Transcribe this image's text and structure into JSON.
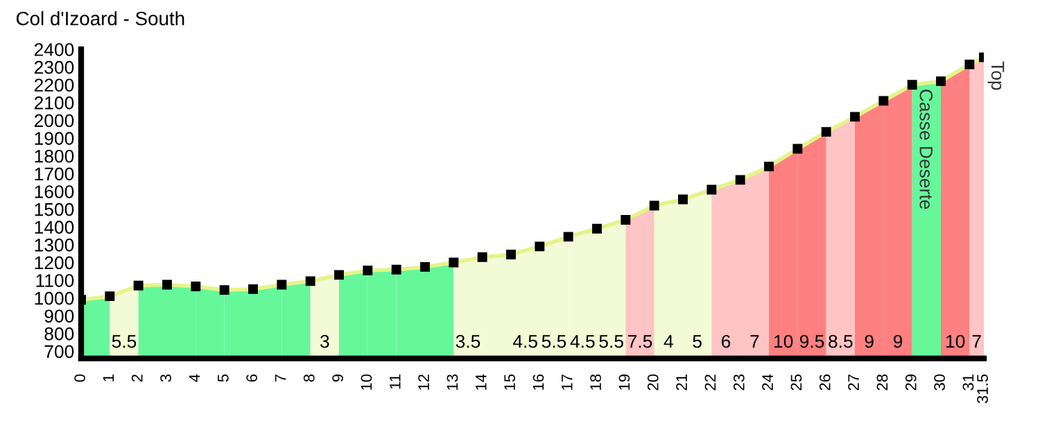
{
  "chart_data": {
    "type": "line",
    "title": "Col d'Izoard - South",
    "x": [
      0,
      1,
      2,
      3,
      4,
      5,
      6,
      7,
      8,
      9,
      10,
      11,
      12,
      13,
      14,
      15,
      16,
      17,
      18,
      19,
      20,
      21,
      22,
      23,
      24,
      25,
      26,
      27,
      28,
      29,
      30,
      31,
      31.5
    ],
    "values": [
      990,
      1010,
      1070,
      1075,
      1065,
      1045,
      1050,
      1075,
      1095,
      1130,
      1155,
      1160,
      1175,
      1200,
      1230,
      1245,
      1290,
      1345,
      1390,
      1440,
      1520,
      1555,
      1610,
      1665,
      1740,
      1840,
      1935,
      2020,
      2110,
      2200,
      2220,
      2315,
      2355
    ],
    "color": "#e4f48a",
    "marker": "square",
    "grid": false,
    "ylim": [
      660,
      2400
    ],
    "yticks": [
      700,
      800,
      900,
      1000,
      1100,
      1200,
      1300,
      1400,
      1500,
      1600,
      1700,
      1800,
      1900,
      2000,
      2100,
      2200,
      2300,
      2400
    ],
    "xlim": [
      0,
      31.5
    ],
    "xticks": [
      0,
      1,
      2,
      3,
      4,
      5,
      6,
      7,
      8,
      9,
      10,
      11,
      12,
      13,
      14,
      15,
      16,
      17,
      18,
      19,
      20,
      21,
      22,
      23,
      24,
      25,
      26,
      27,
      28,
      29,
      30,
      31,
      31.5
    ],
    "bands": [
      {
        "axis": "x",
        "from": 0,
        "to": 1,
        "label": null,
        "color": "#66f79a"
      },
      {
        "axis": "x",
        "from": 1,
        "to": 2,
        "label": "5.5",
        "color": "#f3fad6"
      },
      {
        "axis": "x",
        "from": 2,
        "to": 3,
        "label": null,
        "color": "#66f79a"
      },
      {
        "axis": "x",
        "from": 3,
        "to": 4,
        "label": null,
        "color": "#66f79a"
      },
      {
        "axis": "x",
        "from": 4,
        "to": 5,
        "label": null,
        "color": "#66f79a"
      },
      {
        "axis": "x",
        "from": 5,
        "to": 6,
        "label": null,
        "color": "#66f79a"
      },
      {
        "axis": "x",
        "from": 6,
        "to": 7,
        "label": null,
        "color": "#66f79a"
      },
      {
        "axis": "x",
        "from": 7,
        "to": 8,
        "label": null,
        "color": "#66f79a"
      },
      {
        "axis": "x",
        "from": 8,
        "to": 9,
        "label": "3",
        "color": "#f3fad6"
      },
      {
        "axis": "x",
        "from": 9,
        "to": 10,
        "label": null,
        "color": "#66f79a"
      },
      {
        "axis": "x",
        "from": 10,
        "to": 11,
        "label": null,
        "color": "#66f79a"
      },
      {
        "axis": "x",
        "from": 11,
        "to": 12,
        "label": null,
        "color": "#66f79a"
      },
      {
        "axis": "x",
        "from": 12,
        "to": 13,
        "label": null,
        "color": "#66f79a"
      },
      {
        "axis": "x",
        "from": 13,
        "to": 14,
        "label": "3.5",
        "color": "#f3fad6"
      },
      {
        "axis": "x",
        "from": 14,
        "to": 15,
        "label": null,
        "color": "#f3fad6"
      },
      {
        "axis": "x",
        "from": 15,
        "to": 16,
        "label": "4.5",
        "color": "#f3fad6"
      },
      {
        "axis": "x",
        "from": 16,
        "to": 17,
        "label": "5.5",
        "color": "#f3fad6"
      },
      {
        "axis": "x",
        "from": 17,
        "to": 18,
        "label": "4.5",
        "color": "#f3fad6"
      },
      {
        "axis": "x",
        "from": 18,
        "to": 19,
        "label": "5.5",
        "color": "#f3fad6"
      },
      {
        "axis": "x",
        "from": 19,
        "to": 20,
        "label": "7.5",
        "color": "#ffc4c4"
      },
      {
        "axis": "x",
        "from": 20,
        "to": 21,
        "label": "4",
        "color": "#f3fad6"
      },
      {
        "axis": "x",
        "from": 21,
        "to": 22,
        "label": "5",
        "color": "#f3fad6"
      },
      {
        "axis": "x",
        "from": 22,
        "to": 23,
        "label": "6",
        "color": "#ffc4c4"
      },
      {
        "axis": "x",
        "from": 23,
        "to": 24,
        "label": "7",
        "color": "#ffc4c4"
      },
      {
        "axis": "x",
        "from": 24,
        "to": 25,
        "label": "10",
        "color": "#ff8080"
      },
      {
        "axis": "x",
        "from": 25,
        "to": 26,
        "label": "9.5",
        "color": "#ff8080"
      },
      {
        "axis": "x",
        "from": 26,
        "to": 27,
        "label": "8.5",
        "color": "#ffc4c4"
      },
      {
        "axis": "x",
        "from": 27,
        "to": 28,
        "label": "9",
        "color": "#ff8080"
      },
      {
        "axis": "x",
        "from": 28,
        "to": 29,
        "label": "9",
        "color": "#ff8080"
      },
      {
        "axis": "x",
        "from": 29,
        "to": 30,
        "label": null,
        "color": "#66f79a"
      },
      {
        "axis": "x",
        "from": 30,
        "to": 31,
        "label": "10",
        "color": "#ff8080"
      },
      {
        "axis": "x",
        "from": 31,
        "to": 31.5,
        "label": "7",
        "color": "#ffc4c4"
      }
    ],
    "annotations": [
      {
        "text": "Casse Deserte",
        "x": 29,
        "y": 2200
      },
      {
        "text": "Top",
        "x": 31.5,
        "y": 2355
      }
    ]
  }
}
